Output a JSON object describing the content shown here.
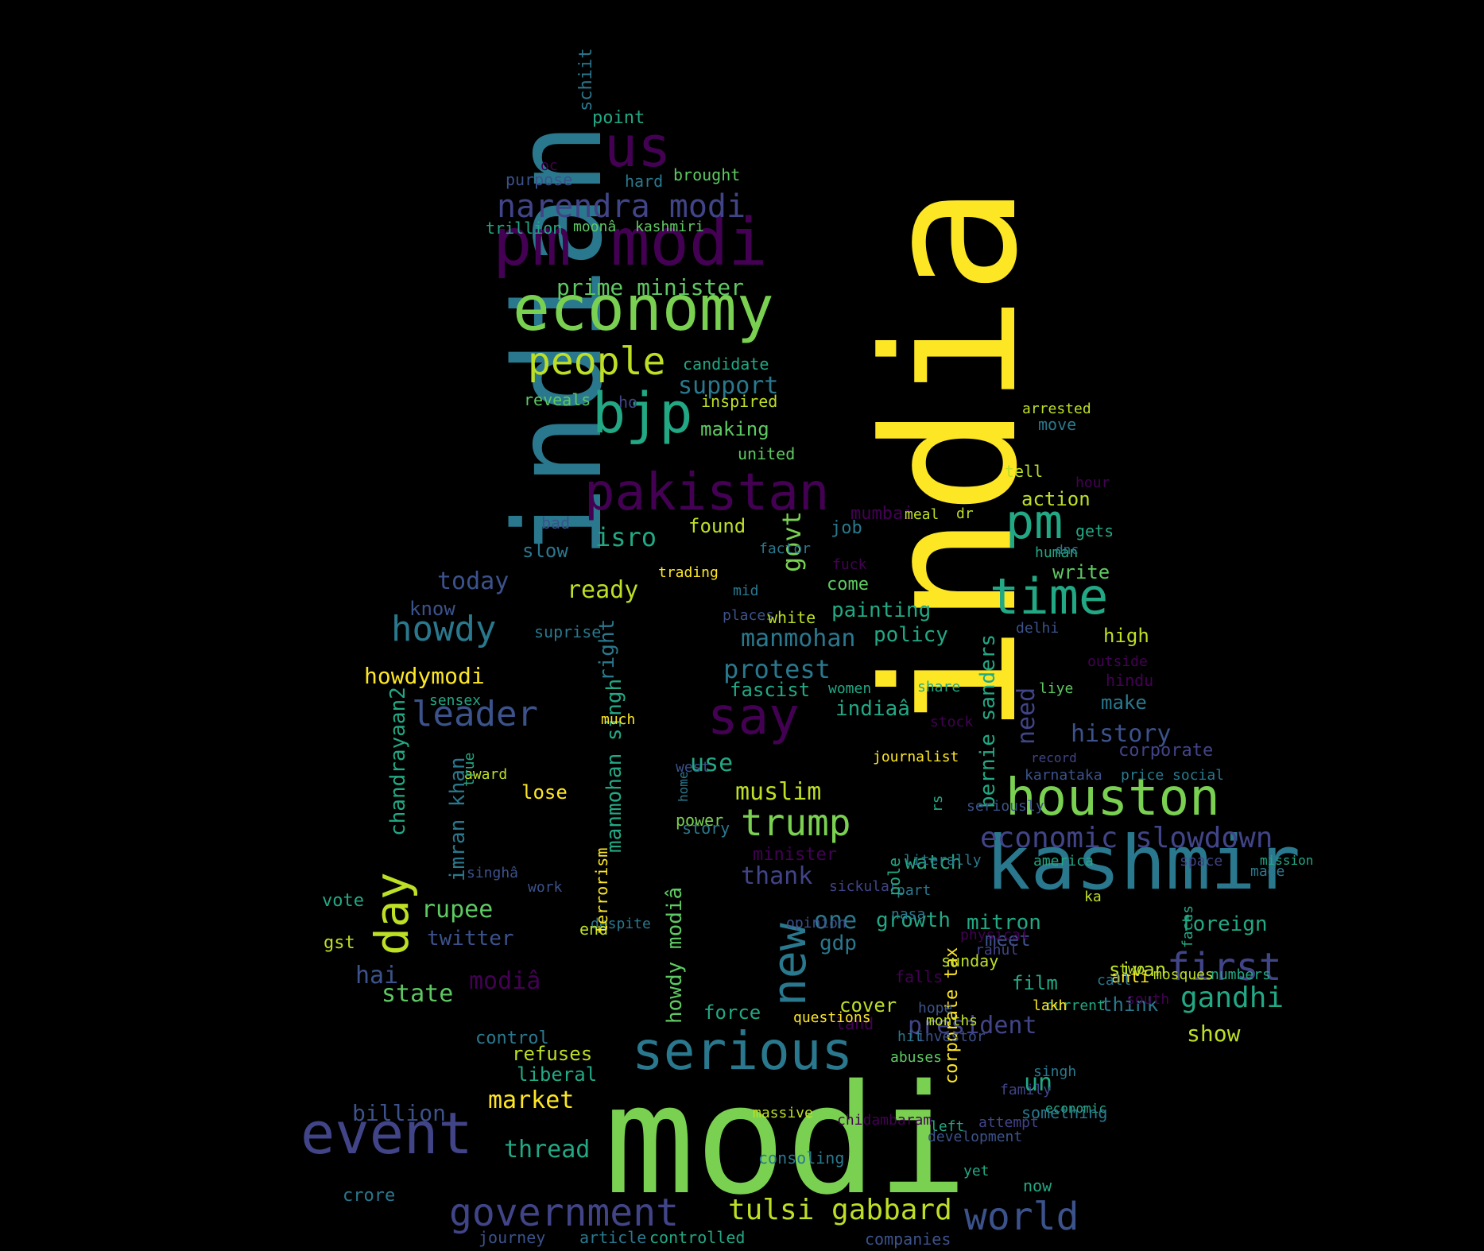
{
  "background": "#000000",
  "palette": {
    "yellow": "#fde725",
    "lime": "#7ad151",
    "green": "#22a884",
    "teal": "#2a788e",
    "blue": "#414487",
    "purple": "#440154",
    "lgreen": "#5ec962",
    "cyan": "#21918c"
  },
  "words": [
    {
      "text": "modi",
      "color": "#7ad151"
    },
    {
      "text": "india",
      "color": "#fde725"
    },
    {
      "text": "indian",
      "color": "#2a788e"
    },
    {
      "text": "kashmir",
      "color": "#2a788e"
    },
    {
      "text": "pm modi",
      "color": "#440154"
    },
    {
      "text": "economy",
      "color": "#7ad151"
    },
    {
      "text": "event",
      "color": "#414487"
    },
    {
      "text": "serious",
      "color": "#2a788e"
    },
    {
      "text": "houston",
      "color": "#7ad151"
    },
    {
      "text": "pakistan",
      "color": "#440154"
    },
    {
      "text": "say",
      "color": "#440154"
    },
    {
      "text": "bjp",
      "color": "#22a884"
    },
    {
      "text": "us",
      "color": "#440154"
    },
    {
      "text": "time",
      "color": "#22a884"
    },
    {
      "text": "pm",
      "color": "#22a884"
    },
    {
      "text": "government",
      "color": "#414487"
    },
    {
      "text": "day",
      "color": "#bddf26"
    },
    {
      "text": "new",
      "color": "#2a788e"
    },
    {
      "text": "people",
      "color": "#bddf26"
    },
    {
      "text": "first",
      "color": "#414487"
    },
    {
      "text": "howdy",
      "color": "#2a788e"
    },
    {
      "text": "leader",
      "color": "#3b528b"
    },
    {
      "text": "world",
      "color": "#3b528b"
    },
    {
      "text": "trump",
      "color": "#7ad151"
    },
    {
      "text": "narendra modi",
      "color": "#414487"
    },
    {
      "text": "tulsi gabbard",
      "color": "#bddf26"
    },
    {
      "text": "economic slowdown",
      "color": "#414487"
    },
    {
      "text": "gandhi",
      "color": "#22a884"
    },
    {
      "text": "govt",
      "color": "#7ad151"
    },
    {
      "text": "isro",
      "color": "#22a884"
    },
    {
      "text": "protest",
      "color": "#2a788e"
    },
    {
      "text": "manmohan",
      "color": "#2a788e"
    },
    {
      "text": "support",
      "color": "#2a788e"
    },
    {
      "text": "prime minister",
      "color": "#5ec962"
    },
    {
      "text": "history",
      "color": "#3b528b"
    },
    {
      "text": "one",
      "color": "#2a788e"
    },
    {
      "text": "muslim",
      "color": "#bddf26"
    },
    {
      "text": "rupee",
      "color": "#5ec962"
    },
    {
      "text": "howdymodi",
      "color": "#fde725"
    },
    {
      "text": "billion",
      "color": "#3b528b"
    },
    {
      "text": "market",
      "color": "#fde725"
    },
    {
      "text": "thread",
      "color": "#22a884"
    },
    {
      "text": "president",
      "color": "#414487"
    },
    {
      "text": "state",
      "color": "#5ec962"
    },
    {
      "text": "today",
      "color": "#3b528b"
    },
    {
      "text": "ready",
      "color": "#bddf26"
    },
    {
      "text": "show",
      "color": "#bddf26"
    },
    {
      "text": "need",
      "color": "#414487"
    },
    {
      "text": "bernie sanders",
      "color": "#22a884"
    },
    {
      "text": "indiaâ",
      "color": "#22a884"
    },
    {
      "text": "modiâ",
      "color": "#440154"
    },
    {
      "text": "howdy modiâ",
      "color": "#5ec962"
    },
    {
      "text": "manmohan singh",
      "color": "#22a884"
    },
    {
      "text": "right",
      "color": "#2a788e"
    },
    {
      "text": "imran khan",
      "color": "#2a788e"
    },
    {
      "text": "chandrayaan2",
      "color": "#22a884"
    },
    {
      "text": "use",
      "color": "#22a884"
    },
    {
      "text": "thank",
      "color": "#414487"
    },
    {
      "text": "hai",
      "color": "#3b528b"
    },
    {
      "text": "un",
      "color": "#22a884"
    },
    {
      "text": "growth",
      "color": "#22a884"
    },
    {
      "text": "gdp",
      "color": "#2a788e"
    },
    {
      "text": "twitter",
      "color": "#3b528b"
    },
    {
      "text": "mitron",
      "color": "#22a884"
    },
    {
      "text": "foreign",
      "color": "#22a884"
    },
    {
      "text": "policy",
      "color": "#22a884"
    },
    {
      "text": "painting",
      "color": "#22a884"
    },
    {
      "text": "found",
      "color": "#bddf26"
    },
    {
      "text": "making",
      "color": "#5ec962"
    },
    {
      "text": "action",
      "color": "#bddf26"
    },
    {
      "text": "film",
      "color": "#22a884"
    },
    {
      "text": "think",
      "color": "#2a788e"
    },
    {
      "text": "high",
      "color": "#bddf26"
    },
    {
      "text": "watch",
      "color": "#22a884"
    },
    {
      "text": "fascist",
      "color": "#22a884"
    },
    {
      "text": "meet",
      "color": "#3b528b"
    },
    {
      "text": "cover",
      "color": "#bddf26"
    },
    {
      "text": "force",
      "color": "#22a884"
    },
    {
      "text": "sivan",
      "color": "#bddf26"
    },
    {
      "text": "write",
      "color": "#5ec962"
    },
    {
      "text": "make",
      "color": "#2a788e"
    },
    {
      "text": "lose",
      "color": "#fde725"
    },
    {
      "text": "slow",
      "color": "#2a788e"
    },
    {
      "text": "know",
      "color": "#3b528b"
    },
    {
      "text": "job",
      "color": "#2a788e"
    },
    {
      "text": "come",
      "color": "#5ec962"
    },
    {
      "text": "corporate",
      "color": "#414487"
    },
    {
      "text": "corporate tax",
      "color": "#fde725"
    },
    {
      "text": "refuses",
      "color": "#bddf26"
    },
    {
      "text": "liberal",
      "color": "#22a884"
    },
    {
      "text": "control",
      "color": "#2a788e"
    },
    {
      "text": "crore",
      "color": "#2a788e"
    },
    {
      "text": "minister",
      "color": "#440154"
    },
    {
      "text": "mumbai",
      "color": "#440154"
    },
    {
      "text": "point",
      "color": "#22a884"
    },
    {
      "text": "schiit",
      "color": "#2a788e"
    },
    {
      "text": "brought",
      "color": "#5ec962"
    },
    {
      "text": "purpose",
      "color": "#3b528b"
    },
    {
      "text": "hard",
      "color": "#2a788e"
    },
    {
      "text": "oc",
      "color": "#440154"
    },
    {
      "text": "trillion",
      "color": "#22a884"
    },
    {
      "text": "moonâ",
      "color": "#5ec962"
    },
    {
      "text": "kashmiri",
      "color": "#5ec962"
    },
    {
      "text": "candidate",
      "color": "#22a884"
    },
    {
      "text": "reveals",
      "color": "#5ec962"
    },
    {
      "text": "ho",
      "color": "#414487"
    },
    {
      "text": "inspired",
      "color": "#bddf26"
    },
    {
      "text": "united",
      "color": "#5ec962"
    },
    {
      "text": "arrested",
      "color": "#bddf26"
    },
    {
      "text": "move",
      "color": "#2a788e"
    },
    {
      "text": "tell",
      "color": "#bddf26"
    },
    {
      "text": "hour",
      "color": "#440154"
    },
    {
      "text": "meal",
      "color": "#bddf26"
    },
    {
      "text": "dr",
      "color": "#bddf26"
    },
    {
      "text": "gets",
      "color": "#22a884"
    },
    {
      "text": "bad",
      "color": "#3b528b"
    },
    {
      "text": "trading",
      "color": "#fde725"
    },
    {
      "text": "factor",
      "color": "#2a788e"
    },
    {
      "text": "fuck",
      "color": "#440154"
    },
    {
      "text": "human",
      "color": "#22a884"
    },
    {
      "text": "dnc",
      "color": "#2a788e"
    },
    {
      "text": "mid",
      "color": "#2a788e"
    },
    {
      "text": "places",
      "color": "#3b528b"
    },
    {
      "text": "white",
      "color": "#bddf26"
    },
    {
      "text": "suprise",
      "color": "#2a788e"
    },
    {
      "text": "delhi",
      "color": "#3b528b"
    },
    {
      "text": "outside",
      "color": "#440154"
    },
    {
      "text": "liye",
      "color": "#5ec962"
    },
    {
      "text": "hindu",
      "color": "#440154"
    },
    {
      "text": "sensex",
      "color": "#22a884"
    },
    {
      "text": "women",
      "color": "#22a884"
    },
    {
      "text": "share",
      "color": "#22a884"
    },
    {
      "text": "much",
      "color": "#fde725"
    },
    {
      "text": "stock",
      "color": "#440154"
    },
    {
      "text": "journalist",
      "color": "#fde725"
    },
    {
      "text": "west",
      "color": "#3b528b"
    },
    {
      "text": "record",
      "color": "#414487"
    },
    {
      "text": "karnataka",
      "color": "#3b528b"
    },
    {
      "text": "price",
      "color": "#2a788e"
    },
    {
      "text": "social",
      "color": "#2a788e"
    },
    {
      "text": "award",
      "color": "#bddf26"
    },
    {
      "text": "true",
      "color": "#22a884"
    },
    {
      "text": "home",
      "color": "#2a788e"
    },
    {
      "text": "seriously",
      "color": "#3b528b"
    },
    {
      "text": "power",
      "color": "#7ad151"
    },
    {
      "text": "story",
      "color": "#2a788e"
    },
    {
      "text": "rs",
      "color": "#22a884"
    },
    {
      "text": "literally",
      "color": "#2a788e"
    },
    {
      "text": "america",
      "color": "#22a884"
    },
    {
      "text": "space",
      "color": "#414487"
    },
    {
      "text": "mission",
      "color": "#22a884"
    },
    {
      "text": "made",
      "color": "#2a788e"
    },
    {
      "text": "singhâ",
      "color": "#3b528b"
    },
    {
      "text": "work",
      "color": "#3b528b"
    },
    {
      "text": "sickular",
      "color": "#414487"
    },
    {
      "text": "part",
      "color": "#2a788e"
    },
    {
      "text": "vote",
      "color": "#22a884"
    },
    {
      "text": "despite",
      "color": "#2a788e"
    },
    {
      "text": "pole",
      "color": "#22a884"
    },
    {
      "text": "ka",
      "color": "#bddf26"
    },
    {
      "text": "end",
      "color": "#bddf26"
    },
    {
      "text": "opinion",
      "color": "#3b528b"
    },
    {
      "text": "nasa",
      "color": "#2a788e"
    },
    {
      "text": "gst",
      "color": "#bddf26"
    },
    {
      "text": "terrorism",
      "color": "#fde725"
    },
    {
      "text": "physical",
      "color": "#440154"
    },
    {
      "text": "rahul",
      "color": "#414487"
    },
    {
      "text": "sunday",
      "color": "#bddf26"
    },
    {
      "text": "falls",
      "color": "#440154"
    },
    {
      "text": "anti",
      "color": "#fde725"
    },
    {
      "text": "numbers",
      "color": "#22a884"
    },
    {
      "text": "faces",
      "color": "#22a884"
    },
    {
      "text": "two",
      "color": "#bddf26"
    },
    {
      "text": "mosques",
      "color": "#bddf26"
    },
    {
      "text": "call",
      "color": "#2a788e"
    },
    {
      "text": "current",
      "color": "#22a884"
    },
    {
      "text": "south",
      "color": "#440154"
    },
    {
      "text": "lakh",
      "color": "#fde725"
    },
    {
      "text": "land",
      "color": "#440154"
    },
    {
      "text": "hope",
      "color": "#3b528b"
    },
    {
      "text": "investor",
      "color": "#3b528b"
    },
    {
      "text": "months",
      "color": "#bddf26"
    },
    {
      "text": "questions",
      "color": "#fde725"
    },
    {
      "text": "abuses",
      "color": "#5ec962"
    },
    {
      "text": "hit",
      "color": "#2a788e"
    },
    {
      "text": "singh",
      "color": "#2a788e"
    },
    {
      "text": "family",
      "color": "#414487"
    },
    {
      "text": "economic",
      "color": "#22a884"
    },
    {
      "text": "something",
      "color": "#2a788e"
    },
    {
      "text": "massive",
      "color": "#bddf26"
    },
    {
      "text": "chidambaram",
      "color": "#440154"
    },
    {
      "text": "left",
      "color": "#22a884"
    },
    {
      "text": "attempt",
      "color": "#414487"
    },
    {
      "text": "development",
      "color": "#3b528b"
    },
    {
      "text": "consoling",
      "color": "#2a788e"
    },
    {
      "text": "yet",
      "color": "#22a884"
    },
    {
      "text": "now",
      "color": "#22a884"
    },
    {
      "text": "journey",
      "color": "#3b528b"
    },
    {
      "text": "article",
      "color": "#2a788e"
    },
    {
      "text": "controlled",
      "color": "#22a884"
    },
    {
      "text": "companies",
      "color": "#3b528b"
    }
  ]
}
